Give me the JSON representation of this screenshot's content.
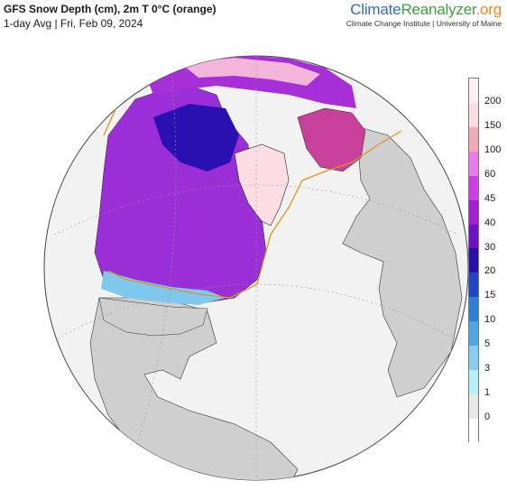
{
  "header": {
    "title": "GFS Snow Depth (cm), 2m T 0°C (orange)",
    "subtitle": "1-day Avg | Fri, Feb 09, 2024"
  },
  "brand": {
    "climate": "Climate",
    "reanalyzer": "Reanalyzer",
    "org": ".org",
    "affiliation": "Climate Change Institute | University of Maine"
  },
  "legend": {
    "labels": [
      "200",
      "150",
      "100",
      "60",
      "45",
      "40",
      "30",
      "20",
      "15",
      "10",
      "5",
      "3",
      "1",
      "0"
    ],
    "colors": [
      "#fbf0f1",
      "#f8dde2",
      "#f0aab8",
      "#e97ce6",
      "#cc3fe0",
      "#a11ed3",
      "#6a12c6",
      "#2a0ea8",
      "#1f46c4",
      "#2f7fd2",
      "#4fa6e3",
      "#86cdf0",
      "#b7eff6",
      "#e8e8e8",
      "#ffffff"
    ]
  },
  "map": {
    "ocean_color": "#f2f2f2",
    "land_color": "#cfcfcf",
    "freezing_line_color": "#e3921f",
    "greenland_color": "#fbdde3"
  }
}
